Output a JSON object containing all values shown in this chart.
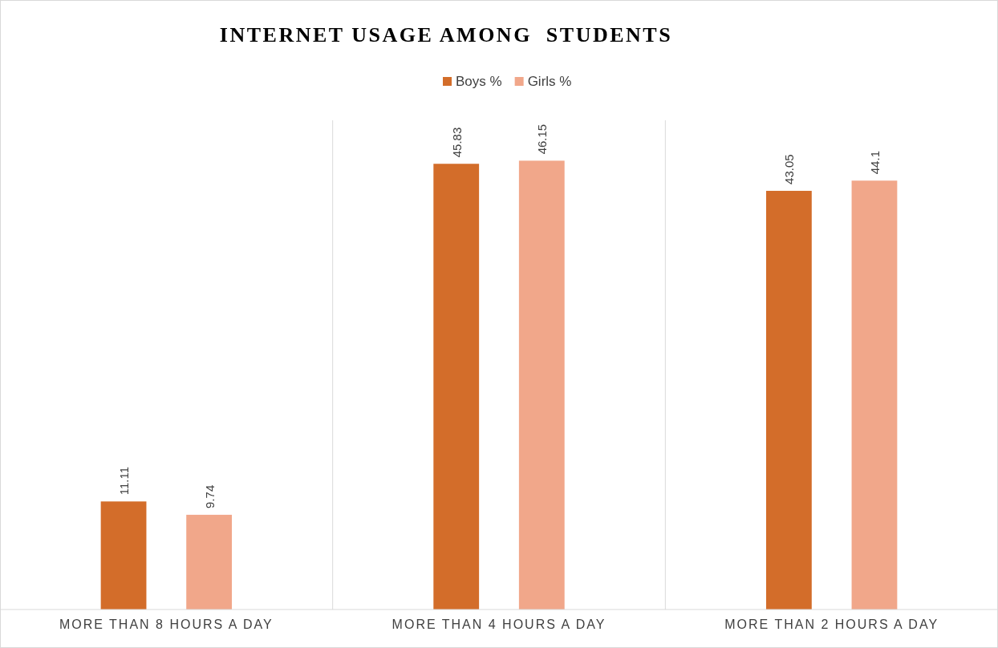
{
  "chart_data": {
    "type": "bar",
    "title": "INTERNET USAGE AMONG  STUDENTS",
    "categories": [
      "MORE THAN 8 HOURS A DAY",
      "MORE THAN 4 HOURS A DAY",
      "MORE THAN 2 HOURS A DAY"
    ],
    "series": [
      {
        "name": "Boys %",
        "color": "#d36d2a",
        "values": [
          11.11,
          45.83,
          43.05
        ]
      },
      {
        "name": "Girls %",
        "color": "#f1a78a",
        "values": [
          9.74,
          46.15,
          44.1
        ]
      }
    ],
    "data_labels": true,
    "grid": "x",
    "legend": "top"
  }
}
